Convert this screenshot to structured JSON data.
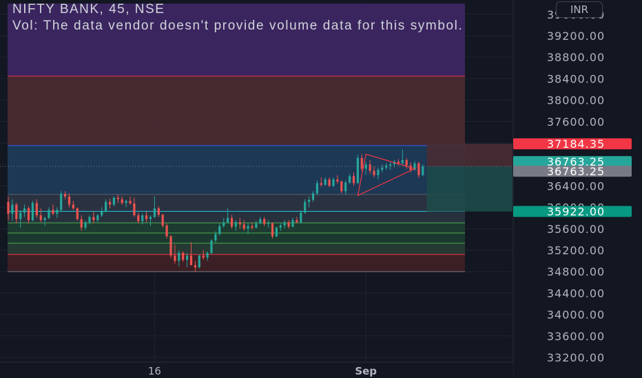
{
  "header": {
    "title": "NIFTY BANK, 45, NSE",
    "volume_note": "Vol: The data vendor doesn't provide volume data for this symbol."
  },
  "currency_button": {
    "label": "INR"
  },
  "colors": {
    "background": "#131722",
    "up": "#26a69a",
    "down": "#ef5350",
    "grid": "#1f2430"
  },
  "chart_data": {
    "type": "candlestick",
    "ylim": [
      33000,
      39800
    ],
    "y_ticks": [
      "39600.00",
      "39200.00",
      "38800.00",
      "38400.00",
      "38000.00",
      "37600.00",
      "37200.00",
      "36800.00",
      "36400.00",
      "36000.00",
      "35600.00",
      "35200.00",
      "34800.00",
      "34400.00",
      "34000.00",
      "33600.00",
      "33200.00"
    ],
    "x_ticks": [
      {
        "label": "16",
        "bar": 36
      },
      {
        "label": "Sep",
        "bar": 88
      }
    ],
    "price_labels": [
      {
        "text": "37184.35",
        "value": 37184.35,
        "color": "#f23645"
      },
      {
        "text": "36763.25",
        "value": 36763.25,
        "color": "#26a69a"
      },
      {
        "text": "36763.25",
        "value": 36763.25,
        "color": "#787b86"
      },
      {
        "text": "35922.00",
        "value": 35922.0,
        "color": "#089981"
      }
    ],
    "zones": [
      {
        "from": 38445,
        "to": 39800,
        "color": "#3d2663"
      },
      {
        "from": 37150,
        "to": 38445,
        "color": "#4a2a31"
      },
      {
        "from": 36240,
        "to": 37150,
        "color": "#1d3a57"
      },
      {
        "from": 35925,
        "to": 36240,
        "color": "#2b3443"
      },
      {
        "from": 35710,
        "to": 35925,
        "color": "#28333f"
      },
      {
        "from": 35520,
        "to": 35710,
        "color": "#1e3d33"
      },
      {
        "from": 35330,
        "to": 35520,
        "color": "#1c3b30"
      },
      {
        "from": 35120,
        "to": 35330,
        "color": "#263a34"
      },
      {
        "from": 34800,
        "to": 35120,
        "color": "#3d2025"
      }
    ],
    "zone_lines": [
      {
        "value": 38445,
        "color": "#f23645"
      },
      {
        "value": 37150,
        "color": "#2962ff"
      },
      {
        "value": 36240,
        "color": "#5d606b"
      },
      {
        "value": 35925,
        "color": "#26c6da"
      },
      {
        "value": 35710,
        "color": "#4caf50"
      },
      {
        "value": 35520,
        "color": "#4caf50"
      },
      {
        "value": 35330,
        "color": "#4caf50"
      },
      {
        "value": 35120,
        "color": "#f23645"
      },
      {
        "value": 34800,
        "color": "#787b86"
      }
    ],
    "position_tool": {
      "entry": 36763.25,
      "target": 37184.35,
      "stop": 35922.0,
      "start_bar": 103
    },
    "triangle": [
      {
        "bar": 88,
        "value": 36990
      },
      {
        "bar": 100,
        "value": 36720
      },
      {
        "bar": 86,
        "value": 36220
      }
    ],
    "candles": [
      [
        36100,
        36200,
        35760,
        35880
      ],
      [
        35880,
        36150,
        35750,
        36050
      ],
      [
        36050,
        36080,
        35700,
        35780
      ],
      [
        35780,
        35950,
        35620,
        35900
      ],
      [
        35900,
        36050,
        35820,
        35980
      ],
      [
        35980,
        36020,
        35700,
        35760
      ],
      [
        35760,
        36120,
        35740,
        36080
      ],
      [
        36080,
        36150,
        35800,
        35850
      ],
      [
        35850,
        35980,
        35720,
        35760
      ],
      [
        35760,
        35820,
        35650,
        35800
      ],
      [
        35800,
        36000,
        35780,
        35950
      ],
      [
        35950,
        36050,
        35850,
        35880
      ],
      [
        35880,
        36000,
        35800,
        35950
      ],
      [
        35950,
        36300,
        35920,
        36250
      ],
      [
        36250,
        36300,
        36150,
        36200
      ],
      [
        36200,
        36260,
        36000,
        36050
      ],
      [
        36050,
        36120,
        35950,
        35980
      ],
      [
        35980,
        36000,
        35750,
        35780
      ],
      [
        35780,
        35850,
        35560,
        35620
      ],
      [
        35620,
        35750,
        35580,
        35720
      ],
      [
        35720,
        35850,
        35680,
        35820
      ],
      [
        35820,
        35920,
        35700,
        35760
      ],
      [
        35760,
        35880,
        35720,
        35850
      ],
      [
        35850,
        36000,
        35820,
        35920
      ],
      [
        35920,
        36150,
        35900,
        36100
      ],
      [
        36100,
        36160,
        35980,
        36050
      ],
      [
        36050,
        36200,
        36020,
        36180
      ],
      [
        36180,
        36240,
        36080,
        36150
      ],
      [
        36150,
        36200,
        36050,
        36080
      ],
      [
        36080,
        36140,
        36000,
        36120
      ],
      [
        36120,
        36200,
        36050,
        36070
      ],
      [
        36070,
        36180,
        35820,
        35850
      ],
      [
        35850,
        35900,
        35700,
        35740
      ],
      [
        35740,
        35880,
        35680,
        35850
      ],
      [
        35850,
        35920,
        35720,
        35780
      ],
      [
        35780,
        35850,
        35650,
        35820
      ],
      [
        35820,
        36200,
        35800,
        35980
      ],
      [
        35980,
        36020,
        35820,
        35860
      ],
      [
        35860,
        35880,
        35620,
        35660
      ],
      [
        35660,
        35700,
        35420,
        35460
      ],
      [
        35460,
        35480,
        35050,
        35100
      ],
      [
        35100,
        35300,
        34950,
        35000
      ],
      [
        35000,
        35200,
        34900,
        35150
      ],
      [
        35150,
        35180,
        34980,
        35020
      ],
      [
        35020,
        35150,
        34880,
        35100
      ],
      [
        35100,
        35350,
        34980,
        34920
      ],
      [
        34920,
        35000,
        34800,
        34880
      ],
      [
        34880,
        35120,
        34860,
        35100
      ],
      [
        35100,
        35200,
        35020,
        35060
      ],
      [
        35060,
        35180,
        35000,
        35150
      ],
      [
        35150,
        35400,
        35120,
        35380
      ],
      [
        35380,
        35550,
        35340,
        35500
      ],
      [
        35500,
        35700,
        35480,
        35650
      ],
      [
        35650,
        35800,
        35620,
        35720
      ],
      [
        35720,
        35980,
        35700,
        35800
      ],
      [
        35800,
        35860,
        35600,
        35640
      ],
      [
        35640,
        35760,
        35560,
        35720
      ],
      [
        35720,
        35800,
        35600,
        35680
      ],
      [
        35680,
        35760,
        35560,
        35600
      ],
      [
        35600,
        35700,
        35500,
        35650
      ],
      [
        35650,
        35720,
        35580,
        35620
      ],
      [
        35620,
        35750,
        35600,
        35700
      ],
      [
        35700,
        35820,
        35680,
        35780
      ],
      [
        35780,
        35820,
        35650,
        35690
      ],
      [
        35690,
        35760,
        35620,
        35700
      ],
      [
        35700,
        35720,
        35420,
        35460
      ],
      [
        35460,
        35640,
        35440,
        35620
      ],
      [
        35620,
        35700,
        35560,
        35660
      ],
      [
        35660,
        35760,
        35600,
        35720
      ],
      [
        35720,
        35760,
        35600,
        35640
      ],
      [
        35640,
        35800,
        35620,
        35760
      ],
      [
        35760,
        35820,
        35700,
        35720
      ],
      [
        35720,
        35950,
        35700,
        35900
      ],
      [
        35900,
        36150,
        35880,
        36100
      ],
      [
        36100,
        36200,
        36000,
        36140
      ],
      [
        36140,
        36300,
        36100,
        36260
      ],
      [
        36260,
        36500,
        36220,
        36450
      ],
      [
        36450,
        36560,
        36380,
        36420
      ],
      [
        36420,
        36560,
        36400,
        36520
      ],
      [
        36520,
        36560,
        36380,
        36400
      ],
      [
        36400,
        36560,
        36380,
        36520
      ],
      [
        36520,
        36600,
        36440,
        36480
      ],
      [
        36480,
        36500,
        36260,
        36300
      ],
      [
        36300,
        36500,
        36240,
        36460
      ],
      [
        36460,
        36620,
        36440,
        36580
      ],
      [
        36580,
        36650,
        36400,
        36450
      ],
      [
        36450,
        36980,
        36440,
        36920
      ],
      [
        36920,
        36990,
        36680,
        36720
      ],
      [
        36720,
        36850,
        36600,
        36800
      ],
      [
        36800,
        36880,
        36620,
        36680
      ],
      [
        36680,
        36760,
        36560,
        36600
      ],
      [
        36600,
        36740,
        36520,
        36700
      ],
      [
        36700,
        36800,
        36650,
        36740
      ],
      [
        36740,
        36820,
        36700,
        36780
      ],
      [
        36780,
        36840,
        36700,
        36800
      ],
      [
        36800,
        36880,
        36740,
        36850
      ],
      [
        36850,
        36900,
        36780,
        36820
      ],
      [
        36820,
        37080,
        36800,
        36880
      ],
      [
        36880,
        36920,
        36720,
        36780
      ],
      [
        36780,
        36840,
        36650,
        36700
      ],
      [
        36700,
        36860,
        36680,
        36820
      ],
      [
        36820,
        36850,
        36550,
        36600
      ],
      [
        36600,
        36800,
        36580,
        36763
      ]
    ]
  }
}
